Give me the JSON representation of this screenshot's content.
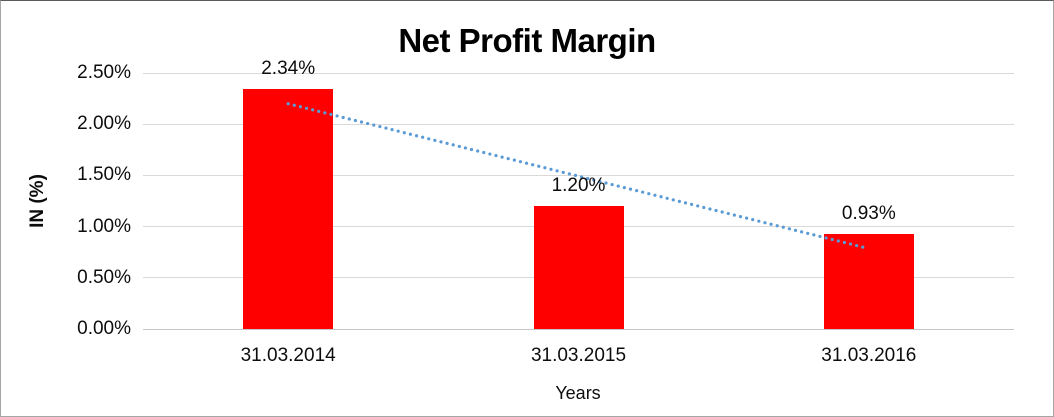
{
  "chart_data": {
    "type": "bar",
    "title": "Net Profit Margin",
    "xlabel": "Years",
    "ylabel": "IN (%)",
    "categories": [
      "31.03.2014",
      "31.03.2015",
      "31.03.2016"
    ],
    "values": [
      2.34,
      1.2,
      0.93
    ],
    "value_labels": [
      "2.34%",
      "1.20%",
      "0.93%"
    ],
    "ylim": [
      0,
      2.5
    ],
    "ytick_step": 0.5,
    "ytick_labels": [
      "0.00%",
      "0.50%",
      "1.00%",
      "1.50%",
      "2.00%",
      "2.50%"
    ],
    "grid": true,
    "legend": "none",
    "bar_color": "#ff0000",
    "gridline_color": "#d9d9d9",
    "trendline": {
      "type": "linear",
      "style": "dotted",
      "color": "#5b9bd5",
      "start_value": 2.2,
      "end_value": 0.785
    }
  }
}
